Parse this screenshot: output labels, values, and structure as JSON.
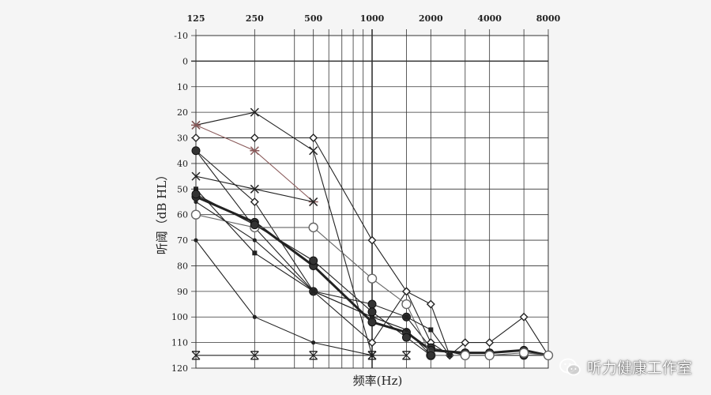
{
  "chart_data": {
    "type": "line",
    "ylabel": "听阈（dB HL）",
    "xlabel": "频率(Hz)",
    "x_tick_labels": [
      {
        "value": 125,
        "label": "125"
      },
      {
        "value": 250,
        "label": "250"
      },
      {
        "value": 500,
        "label": "500"
      },
      {
        "value": 1000,
        "label": "1000"
      },
      {
        "value": 2000,
        "label": "2000"
      },
      {
        "value": 4000,
        "label": "4000"
      },
      {
        "value": 8000,
        "label": "8000"
      }
    ],
    "x_gridlines": [
      125,
      250,
      400,
      500,
      600,
      700,
      800,
      900,
      1000,
      1500,
      2000,
      3000,
      4000,
      6000,
      8000
    ],
    "y_ticks": [
      -10,
      0,
      10,
      20,
      30,
      40,
      50,
      60,
      70,
      80,
      90,
      100,
      110,
      120
    ],
    "ylim": [
      -10,
      120
    ],
    "xlim": [
      125,
      8000
    ],
    "y_inverted": true,
    "x_scale": "log",
    "grid": true,
    "series": [
      {
        "marker": "diamond",
        "points": [
          [
            125,
            30
          ],
          [
            250,
            30
          ],
          [
            500,
            30
          ],
          [
            1000,
            70
          ],
          [
            1500,
            90
          ],
          [
            2000,
            95
          ],
          [
            2500,
            115
          ]
        ]
      },
      {
        "marker": "x",
        "points": [
          [
            125,
            25
          ],
          [
            250,
            20
          ],
          [
            500,
            35
          ],
          [
            1000,
            115
          ]
        ]
      },
      {
        "marker": "asterisk",
        "color": "#8a5a5a",
        "points": [
          [
            125,
            25
          ],
          [
            250,
            35
          ],
          [
            500,
            55
          ]
        ]
      },
      {
        "marker": "x",
        "points": [
          [
            125,
            45
          ],
          [
            250,
            50
          ],
          [
            500,
            55
          ]
        ]
      },
      {
        "marker": "diamond",
        "points": [
          [
            125,
            35
          ],
          [
            250,
            55
          ],
          [
            500,
            90
          ],
          [
            1000,
            110
          ],
          [
            1500,
            90
          ],
          [
            2000,
            110
          ],
          [
            2500,
            115
          ],
          [
            3000,
            110
          ],
          [
            4000,
            110
          ],
          [
            6000,
            100
          ],
          [
            8000,
            115
          ]
        ]
      },
      {
        "marker": "circle-filled",
        "points": [
          [
            125,
            35
          ],
          [
            250,
            65
          ],
          [
            500,
            90
          ],
          [
            1000,
            95
          ],
          [
            1500,
            100
          ],
          [
            2000,
            112
          ],
          [
            3000,
            115
          ],
          [
            4000,
            115
          ],
          [
            6000,
            115
          ],
          [
            8000,
            115
          ]
        ]
      },
      {
        "marker": "circle-filled",
        "bold": true,
        "points": [
          [
            125,
            53
          ],
          [
            250,
            63
          ],
          [
            500,
            80
          ],
          [
            1000,
            102
          ],
          [
            1500,
            106
          ],
          [
            2000,
            113
          ],
          [
            3000,
            114
          ],
          [
            4000,
            114
          ],
          [
            6000,
            113
          ],
          [
            8000,
            115
          ]
        ]
      },
      {
        "marker": "circle-open",
        "color": "#666666",
        "points": [
          [
            125,
            60
          ],
          [
            250,
            65
          ],
          [
            500,
            65
          ],
          [
            1000,
            85
          ],
          [
            1500,
            95
          ],
          [
            2000,
            115
          ],
          [
            3000,
            115
          ],
          [
            4000,
            115
          ],
          [
            6000,
            114
          ],
          [
            8000,
            115
          ]
        ]
      },
      {
        "marker": "square",
        "points": [
          [
            125,
            50
          ],
          [
            250,
            75
          ],
          [
            500,
            90
          ],
          [
            1000,
            100
          ],
          [
            1500,
            100
          ],
          [
            2000,
            105
          ],
          [
            2500,
            115
          ]
        ]
      },
      {
        "marker": "dot",
        "points": [
          [
            125,
            70
          ],
          [
            250,
            100
          ],
          [
            500,
            110
          ],
          [
            1000,
            115
          ]
        ]
      },
      {
        "marker": "dot",
        "points": [
          [
            125,
            55
          ],
          [
            250,
            70
          ],
          [
            500,
            90
          ],
          [
            1000,
            100
          ],
          [
            1500,
            105
          ],
          [
            2000,
            115
          ]
        ]
      },
      {
        "marker": "circle-filled",
        "points": [
          [
            125,
            52
          ],
          [
            250,
            64
          ],
          [
            500,
            78
          ],
          [
            1000,
            98
          ],
          [
            1500,
            108
          ],
          [
            2000,
            115
          ]
        ]
      },
      {
        "marker": "x-cross",
        "points": [
          [
            125,
            115
          ],
          [
            250,
            115
          ],
          [
            500,
            115
          ],
          [
            1000,
            115
          ],
          [
            1500,
            115
          ]
        ]
      }
    ]
  },
  "watermark": {
    "text": "听力健康工作室",
    "icon": "wechat-icon"
  }
}
